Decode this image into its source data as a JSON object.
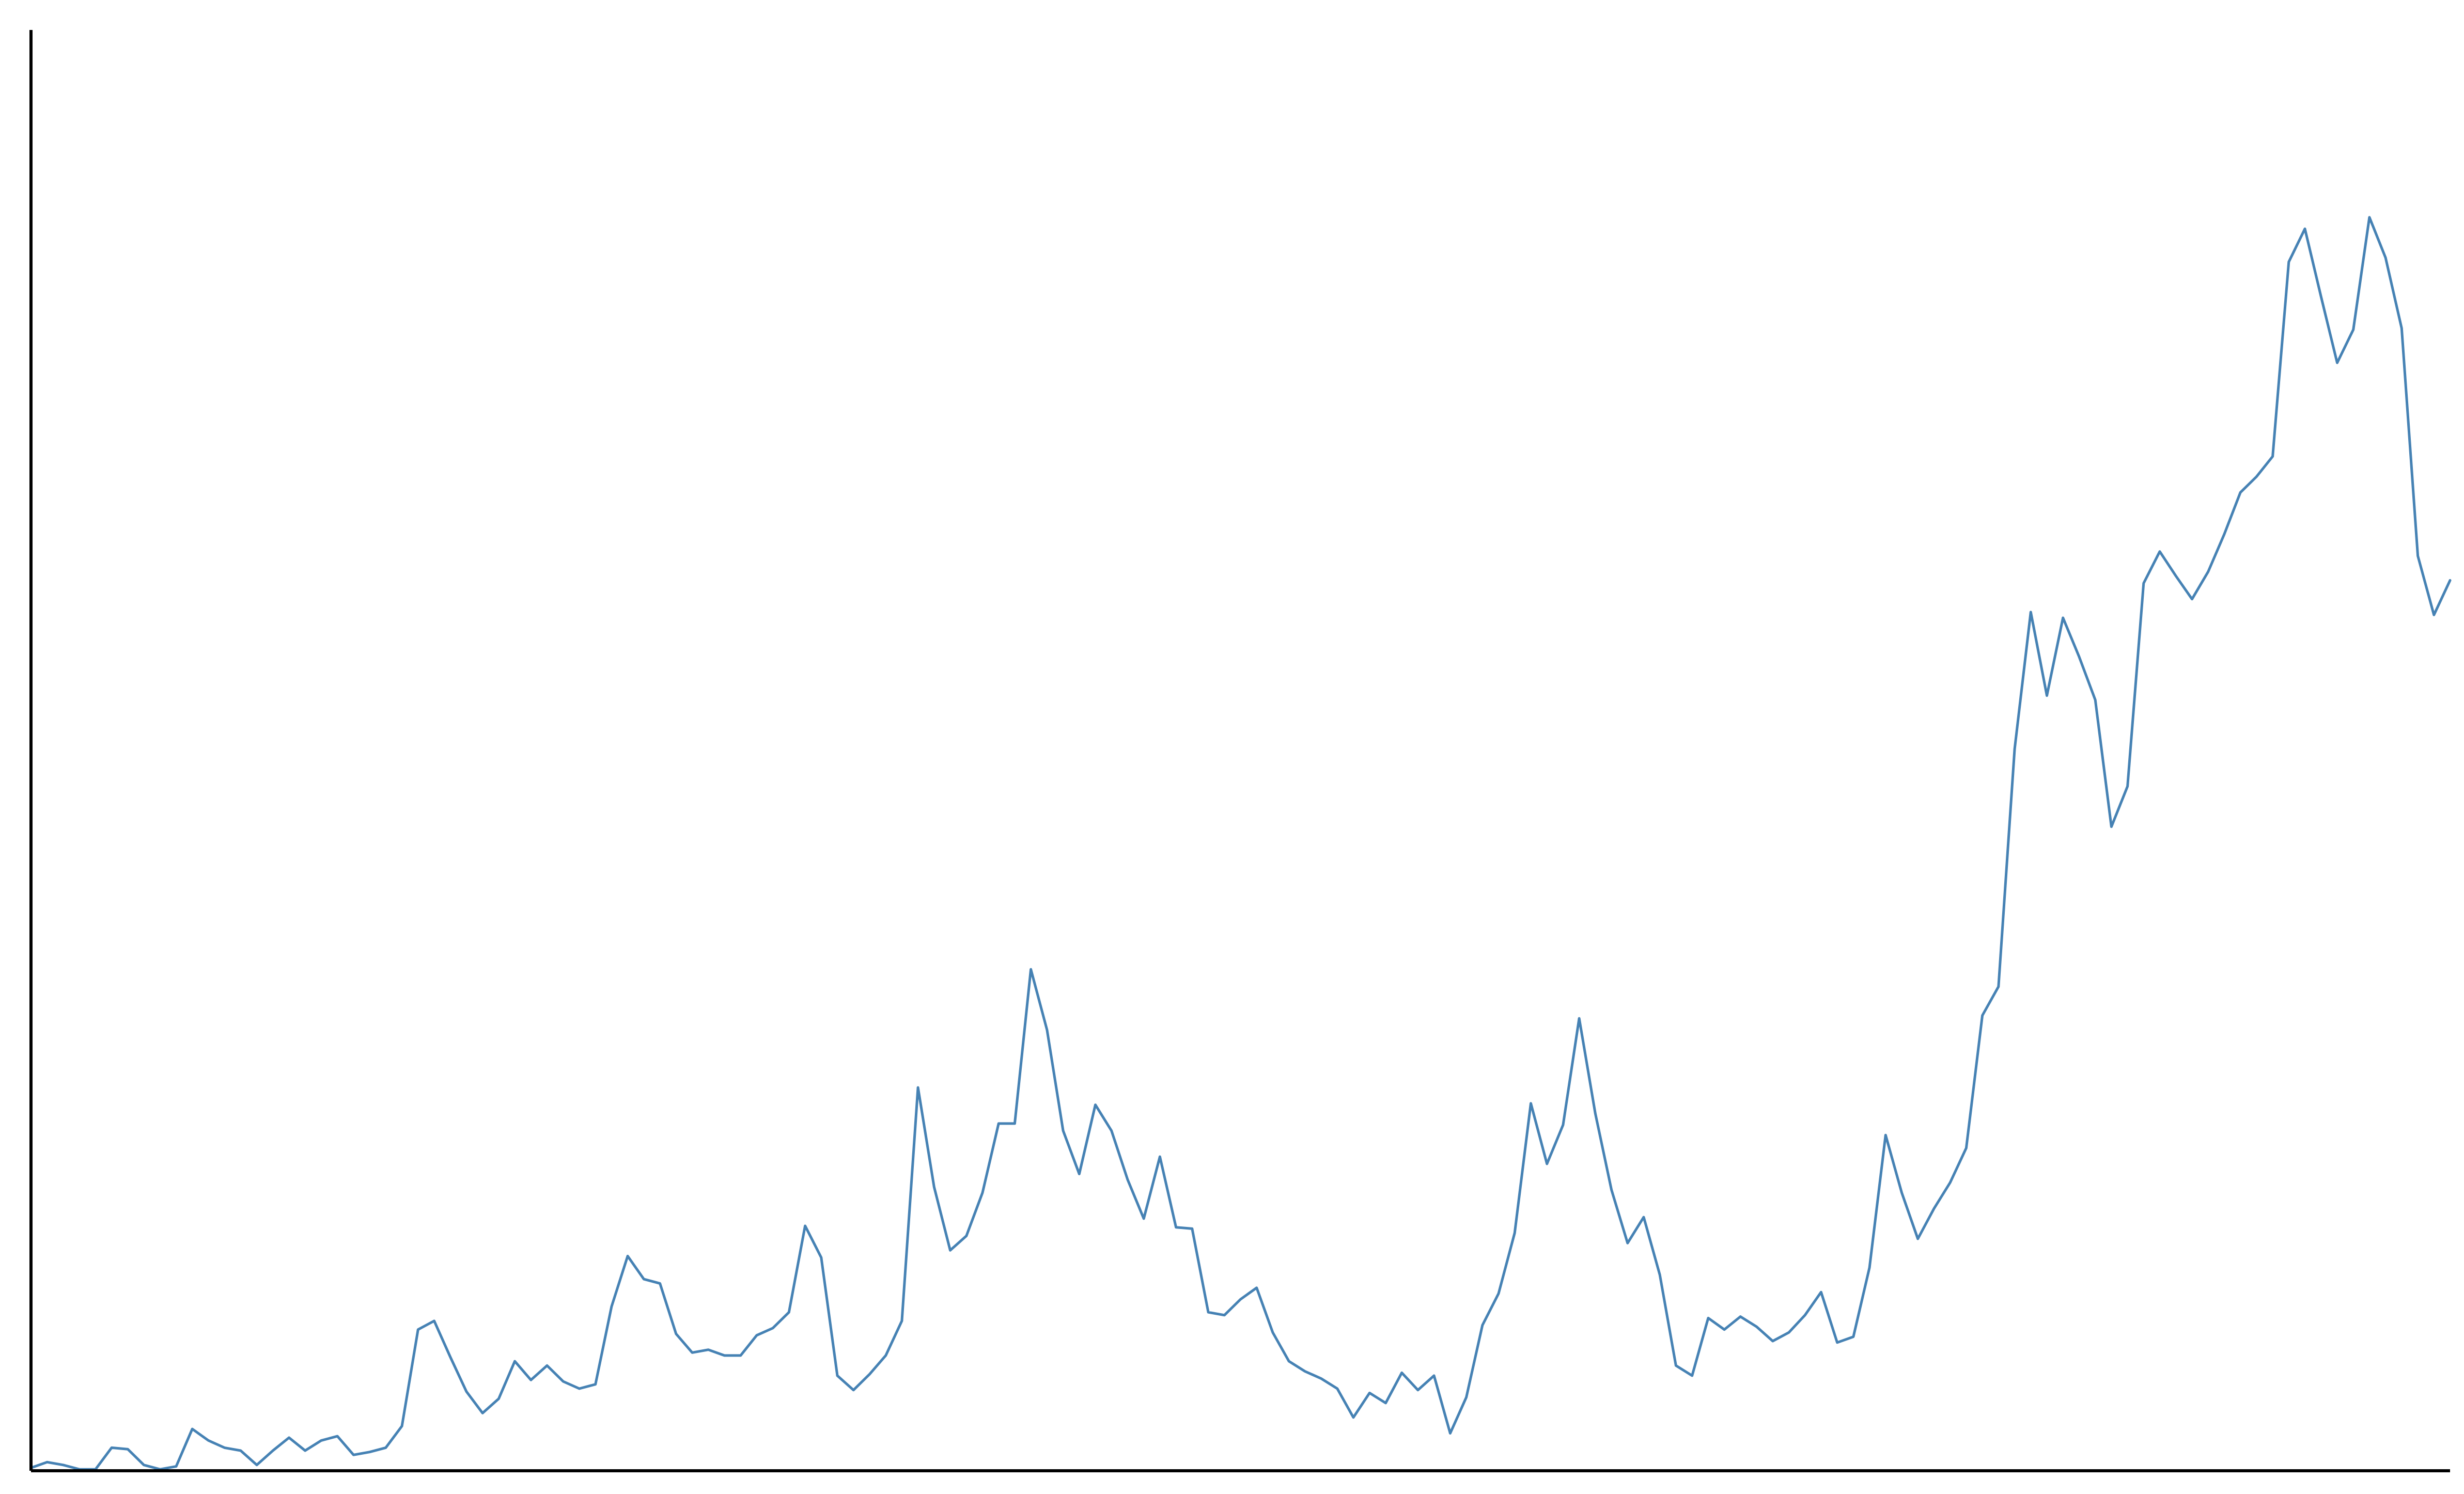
{
  "chart_data": {
    "type": "line",
    "title": "",
    "xlabel": "",
    "ylabel": "",
    "x_ticks": [],
    "y_ticks": [],
    "grid": false,
    "legend": "none",
    "xlim": [
      0,
      1500
    ],
    "ylim": [
      0,
      100
    ],
    "series": [
      {
        "color": "#4682b4",
        "x": [
          0,
          10,
          20,
          30,
          40,
          50,
          60,
          70,
          80,
          90,
          100,
          110,
          120,
          130,
          140,
          150,
          160,
          170,
          180,
          190,
          200,
          210,
          220,
          230,
          240,
          250,
          260,
          270,
          280,
          290,
          300,
          310,
          320,
          330,
          340,
          350,
          360,
          370,
          380,
          390,
          400,
          410,
          420,
          430,
          440,
          450,
          460,
          470,
          480,
          490,
          500,
          510,
          520,
          530,
          540,
          550,
          560,
          570,
          580,
          590,
          600,
          610,
          620,
          630,
          640,
          650,
          660,
          670,
          680,
          690,
          700,
          710,
          720,
          730,
          740,
          750,
          760,
          770,
          780,
          790,
          800,
          810,
          820,
          830,
          840,
          850,
          860,
          870,
          880,
          890,
          900,
          910,
          920,
          930,
          940,
          950,
          960,
          970,
          980,
          990,
          1000,
          1010,
          1020,
          1030,
          1040,
          1050,
          1060,
          1070,
          1080,
          1090,
          1100,
          1110,
          1120,
          1130,
          1140,
          1150,
          1160,
          1170,
          1180,
          1190,
          1200,
          1210,
          1220,
          1230,
          1240,
          1250,
          1260,
          1270,
          1280,
          1290,
          1300,
          1310,
          1320,
          1330,
          1340,
          1350,
          1360,
          1370,
          1380,
          1390,
          1400,
          1410,
          1420,
          1430,
          1440,
          1450,
          1460,
          1470,
          1480,
          1490,
          1500
        ],
        "y": [
          0.2,
          0.6,
          0.4,
          0.1,
          0.1,
          1.6,
          1.5,
          0.4,
          0.1,
          0.3,
          2.9,
          2.1,
          1.6,
          1.4,
          0.4,
          1.4,
          2.3,
          1.4,
          2.1,
          2.4,
          1.1,
          1.3,
          1.6,
          3.1,
          9.8,
          10.4,
          7.9,
          5.5,
          4.0,
          5.0,
          7.6,
          6.3,
          7.3,
          6.2,
          5.7,
          6.0,
          11.4,
          14.9,
          13.3,
          13.0,
          9.5,
          8.2,
          8.4,
          8.0,
          8.0,
          9.4,
          9.9,
          11.0,
          17.0,
          14.8,
          6.6,
          5.6,
          6.7,
          8.0,
          10.4,
          26.6,
          19.7,
          15.3,
          16.3,
          19.3,
          24.1,
          24.1,
          34.8,
          30.6,
          23.6,
          20.6,
          25.4,
          23.6,
          20.2,
          17.5,
          21.8,
          16.9,
          16.8,
          11.0,
          10.8,
          11.9,
          12.7,
          9.6,
          7.6,
          6.9,
          6.4,
          5.7,
          3.7,
          5.4,
          4.7,
          6.8,
          5.6,
          6.6,
          2.6,
          5.1,
          10.1,
          12.3,
          16.5,
          25.5,
          21.3,
          24.0,
          31.4,
          24.8,
          19.5,
          15.8,
          17.6,
          13.6,
          7.3,
          6.6,
          10.6,
          9.8,
          10.7,
          10.0,
          9.0,
          9.6,
          10.8,
          12.4,
          8.9,
          9.3,
          14.1,
          23.3,
          19.3,
          16.1,
          18.2,
          20.0,
          22.4,
          31.6,
          33.6,
          50.1,
          59.6,
          53.8,
          59.2,
          56.5,
          53.5,
          44.7,
          47.5,
          61.6,
          63.8,
          62.1,
          60.5,
          62.4,
          65.0,
          67.9,
          69.0,
          70.4,
          83.9,
          86.2,
          81.5,
          76.9,
          79.2,
          87.0,
          84.2,
          79.3,
          63.5,
          59.4,
          61.8
        ]
      }
    ]
  }
}
